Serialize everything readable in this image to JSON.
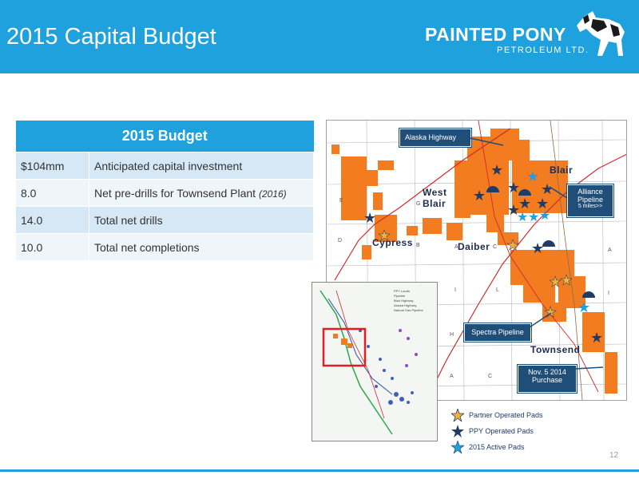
{
  "slide": {
    "title": "2015 Capital Budget",
    "page_number": "12"
  },
  "logo": {
    "name": "PAINTED PONY",
    "subtitle": "PETROLEUM LTD."
  },
  "budget_table": {
    "header": "2015 Budget",
    "rows": [
      {
        "amount": "$104mm",
        "description": "Anticipated capital investment",
        "note": ""
      },
      {
        "amount": "8.0",
        "description": "Net pre-drills for Townsend Plant",
        "note": "(2016)"
      },
      {
        "amount": "14.0",
        "description": "Total net drills",
        "note": ""
      },
      {
        "amount": "10.0",
        "description": "Total net completions",
        "note": ""
      }
    ]
  },
  "map": {
    "callouts": {
      "alaska": "Alaska Highway",
      "alliance": "Alliance Pipeline",
      "alliance_dist": "5 miles>>",
      "spectra": "Spectra Pipeline",
      "purchase_1": "Nov. 5 2014",
      "purchase_2": "Purchase"
    },
    "areas": {
      "blair": "Blair",
      "west_blair_1": "West",
      "west_blair_2": "Blair",
      "cypress": "Cypress",
      "daiber": "Daiber",
      "townsend": "Townsend"
    },
    "grid_letters": [
      "E",
      "D",
      "G",
      "B",
      "A",
      "C",
      "H",
      "A",
      "C",
      "A",
      "B",
      "L",
      "I",
      "J"
    ],
    "colors": {
      "ppy_lands": "#f37b20",
      "partner_star": "#f5b23a",
      "ppy_star": "#1f3c68",
      "active_star": "#1ea1dc",
      "highway": "#d12b2b"
    }
  },
  "inset_legend": [
    "PPY Lands",
    "Pipeline",
    "Blair Highway",
    "Alaska Highway",
    "Natural Gas Pipeline"
  ],
  "legend": [
    {
      "label": "Partner Operated Pads",
      "icon": "partner-star-icon"
    },
    {
      "label": "PPY Operated Pads",
      "icon": "ppy-star-icon"
    },
    {
      "label": "2015 Active Pads",
      "icon": "active-star-icon"
    }
  ]
}
